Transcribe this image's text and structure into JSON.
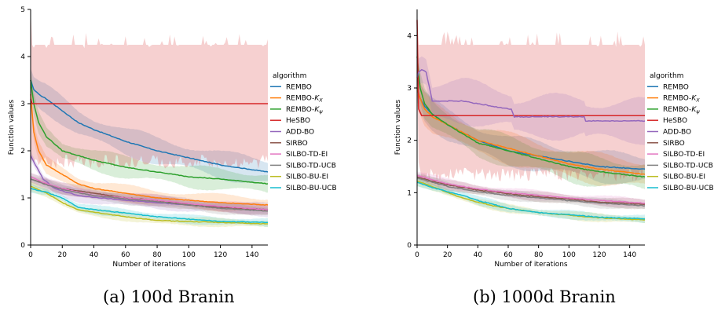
{
  "chart_data": [
    {
      "type": "line",
      "caption": "(a) 100d Branin",
      "xlabel": "Number of iterations",
      "ylabel": "Function values",
      "xlim": [
        0,
        150
      ],
      "ylim": [
        0,
        5
      ],
      "xticks": [
        0,
        20,
        40,
        60,
        80,
        100,
        120,
        140
      ],
      "yticks": [
        0,
        1,
        2,
        3,
        4,
        5
      ],
      "grid": false,
      "legend_title": "algorithm",
      "legend_position": "right",
      "series": [
        {
          "name": "REMBO",
          "color": "#1f77b4",
          "band": 0.25,
          "x": [
            0,
            2,
            5,
            10,
            20,
            30,
            40,
            60,
            80,
            100,
            120,
            150
          ],
          "y": [
            3.5,
            3.3,
            3.2,
            3.1,
            2.85,
            2.6,
            2.45,
            2.2,
            2.0,
            1.85,
            1.7,
            1.55
          ]
        },
        {
          "name": "REMBO-K_X",
          "color": "#ff7f0e",
          "band": 0.15,
          "x": [
            0,
            2,
            5,
            10,
            20,
            30,
            40,
            60,
            80,
            100,
            120,
            150
          ],
          "y": [
            3.2,
            2.4,
            2.0,
            1.7,
            1.5,
            1.3,
            1.2,
            1.1,
            1.0,
            0.95,
            0.9,
            0.85
          ]
        },
        {
          "name": "REMBO-K_ψ",
          "color": "#2ca02c",
          "band": 0.2,
          "x": [
            0,
            2,
            5,
            10,
            20,
            30,
            40,
            60,
            80,
            100,
            120,
            150
          ],
          "y": [
            3.5,
            3.0,
            2.6,
            2.3,
            2.0,
            1.9,
            1.8,
            1.65,
            1.55,
            1.45,
            1.4,
            1.3
          ]
        },
        {
          "name": "HeSBO",
          "color": "#d62728",
          "band": 1.2,
          "band_style": "jagged",
          "x": [
            0,
            1,
            150
          ],
          "y": [
            3.1,
            3.0,
            3.0
          ]
        },
        {
          "name": "ADD-BO",
          "color": "#9467bd",
          "band": 0.12,
          "x": [
            0,
            3,
            8,
            15,
            30,
            60,
            100,
            150
          ],
          "y": [
            1.9,
            1.7,
            1.4,
            1.2,
            1.05,
            0.95,
            0.85,
            0.75
          ]
        },
        {
          "name": "SIRBO",
          "color": "#8c564b",
          "band": 0.1,
          "x": [
            0,
            10,
            20,
            40,
            60,
            80,
            100,
            120,
            150
          ],
          "y": [
            1.4,
            1.3,
            1.2,
            1.1,
            1.0,
            0.95,
            0.85,
            0.8,
            0.75
          ]
        },
        {
          "name": "SILBO-TD-EI",
          "color": "#e377c2",
          "band": 0.1,
          "x": [
            0,
            10,
            20,
            40,
            60,
            80,
            100,
            120,
            150
          ],
          "y": [
            1.45,
            1.3,
            1.2,
            1.05,
            1.0,
            0.95,
            0.88,
            0.82,
            0.75
          ]
        },
        {
          "name": "SILBO-TD-UCB",
          "color": "#7f7f7f",
          "band": 0.1,
          "x": [
            0,
            10,
            20,
            40,
            60,
            80,
            100,
            120,
            150
          ],
          "y": [
            1.4,
            1.28,
            1.18,
            1.05,
            0.98,
            0.92,
            0.85,
            0.78,
            0.72
          ]
        },
        {
          "name": "SILBO-BU-EI",
          "color": "#bcbd22",
          "band": 0.08,
          "x": [
            0,
            10,
            20,
            30,
            40,
            60,
            80,
            100,
            120,
            150
          ],
          "y": [
            1.25,
            1.1,
            0.9,
            0.75,
            0.7,
            0.6,
            0.52,
            0.5,
            0.48,
            0.45
          ]
        },
        {
          "name": "SILBO-BU-UCB",
          "color": "#17becf",
          "band": 0.08,
          "x": [
            0,
            10,
            20,
            30,
            40,
            60,
            80,
            100,
            120,
            150
          ],
          "y": [
            1.2,
            1.12,
            1.0,
            0.8,
            0.75,
            0.68,
            0.6,
            0.55,
            0.5,
            0.48
          ]
        }
      ]
    },
    {
      "type": "line",
      "caption": "(b) 1000d Branin",
      "xlabel": "Number of iterations",
      "ylabel": "Function values",
      "xlim": [
        0,
        150
      ],
      "ylim": [
        0,
        4.5
      ],
      "xticks": [
        0,
        20,
        40,
        60,
        80,
        100,
        120,
        140
      ],
      "yticks": [
        0,
        1,
        2,
        3,
        4
      ],
      "grid": false,
      "legend_title": "algorithm",
      "legend_position": "right",
      "series": [
        {
          "name": "REMBO",
          "color": "#1f77b4",
          "band": 0.25,
          "x": [
            0,
            2,
            5,
            10,
            20,
            40,
            60,
            80,
            100,
            120,
            150
          ],
          "y": [
            3.0,
            2.8,
            2.65,
            2.5,
            2.3,
            2.0,
            1.8,
            1.7,
            1.6,
            1.5,
            1.45
          ]
        },
        {
          "name": "REMBO-K_X",
          "color": "#ff7f0e",
          "band": 0.25,
          "x": [
            0,
            2,
            5,
            10,
            20,
            40,
            60,
            80,
            100,
            120,
            150
          ],
          "y": [
            3.0,
            2.8,
            2.6,
            2.45,
            2.3,
            2.0,
            1.85,
            1.7,
            1.55,
            1.45,
            1.35
          ]
        },
        {
          "name": "REMBO-K_ψ",
          "color": "#2ca02c",
          "band": 0.25,
          "x": [
            0,
            2,
            5,
            10,
            20,
            40,
            60,
            80,
            100,
            120,
            150
          ],
          "y": [
            3.6,
            3.0,
            2.7,
            2.5,
            2.3,
            1.95,
            1.8,
            1.65,
            1.5,
            1.4,
            1.3
          ]
        },
        {
          "name": "HeSBO",
          "color": "#d62728",
          "band": 1.1,
          "band_style": "jagged",
          "x": [
            0,
            1,
            3,
            150
          ],
          "y": [
            4.3,
            2.6,
            2.47,
            2.47
          ]
        },
        {
          "name": "ADD-BO",
          "color": "#9467bd",
          "band": 0.35,
          "x": [
            0,
            1,
            3,
            6,
            10,
            30,
            60,
            62,
            64,
            110,
            111,
            150
          ],
          "y": [
            3.2,
            3.3,
            3.35,
            3.3,
            2.75,
            2.75,
            2.6,
            2.6,
            2.45,
            2.45,
            2.37,
            2.37
          ]
        },
        {
          "name": "SIRBO",
          "color": "#8c564b",
          "band": 0.08,
          "x": [
            0,
            10,
            20,
            40,
            60,
            80,
            100,
            120,
            150
          ],
          "y": [
            1.3,
            1.22,
            1.15,
            1.05,
            0.98,
            0.92,
            0.88,
            0.82,
            0.78
          ]
        },
        {
          "name": "SILBO-TD-EI",
          "color": "#e377c2",
          "band": 0.08,
          "x": [
            0,
            10,
            20,
            40,
            60,
            80,
            100,
            120,
            150
          ],
          "y": [
            1.33,
            1.25,
            1.17,
            1.07,
            1.0,
            0.95,
            0.9,
            0.85,
            0.8
          ]
        },
        {
          "name": "SILBO-TD-UCB",
          "color": "#7f7f7f",
          "band": 0.08,
          "x": [
            0,
            10,
            20,
            40,
            60,
            80,
            100,
            120,
            150
          ],
          "y": [
            1.28,
            1.2,
            1.12,
            1.02,
            0.95,
            0.9,
            0.85,
            0.8,
            0.75
          ]
        },
        {
          "name": "SILBO-BU-EI",
          "color": "#bcbd22",
          "band": 0.07,
          "x": [
            0,
            10,
            20,
            30,
            40,
            50,
            60,
            80,
            100,
            120,
            150
          ],
          "y": [
            1.22,
            1.12,
            1.0,
            0.9,
            0.82,
            0.75,
            0.7,
            0.62,
            0.57,
            0.52,
            0.48
          ]
        },
        {
          "name": "SILBO-BU-UCB",
          "color": "#17becf",
          "band": 0.07,
          "x": [
            0,
            10,
            20,
            30,
            40,
            50,
            60,
            80,
            100,
            120,
            150
          ],
          "y": [
            1.2,
            1.1,
            1.02,
            0.95,
            0.85,
            0.78,
            0.7,
            0.62,
            0.58,
            0.53,
            0.5
          ]
        }
      ]
    }
  ]
}
